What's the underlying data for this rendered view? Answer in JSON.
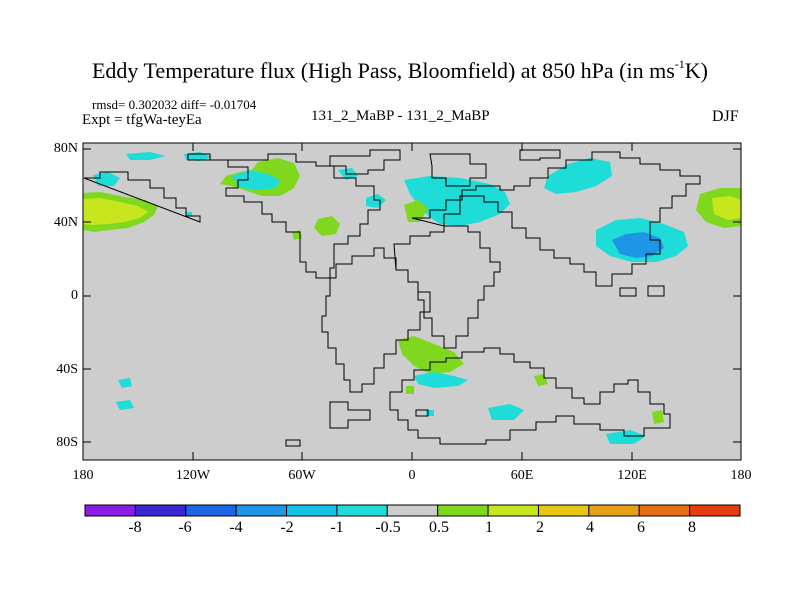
{
  "title": {
    "main": "Eddy Temperature flux (High Pass, Bloomfield) at 850 hPa (in ms",
    "sup": "-1",
    "tail": "K)"
  },
  "stats": "rmsd= 0.302032 diff= -0.01704",
  "expt": "Expt = tfgWa-teyEa",
  "experiment_label": "131_2_MaBP - 131_2_MaBP",
  "season": "DJF",
  "lat_labels": [
    "80N",
    "40N",
    "0",
    "40S",
    "80S"
  ],
  "lon_labels": [
    "180",
    "120W",
    "60W",
    "0",
    "60E",
    "120E",
    "180"
  ],
  "colorbar": {
    "labels": [
      "-8",
      "-6",
      "-4",
      "-2",
      "-1",
      "-0.5",
      "0.5",
      "1",
      "2",
      "4",
      "6",
      "8"
    ],
    "colors": [
      "#8a1ee6",
      "#3c28d2",
      "#1e64e6",
      "#1e96e6",
      "#14c3e6",
      "#1edcd7",
      "#cdcdcd",
      "#7fd81e",
      "#c8e61e",
      "#e6c814",
      "#e6a014",
      "#e66e14",
      "#e63c14"
    ]
  },
  "map_colors": {
    "background": "#cdcdcd",
    "light_cyan": "#1edcd7",
    "cyan": "#14c3e6",
    "blue": "#1e96e6",
    "green": "#7fd81e",
    "yellow_green": "#c8e61e"
  }
}
